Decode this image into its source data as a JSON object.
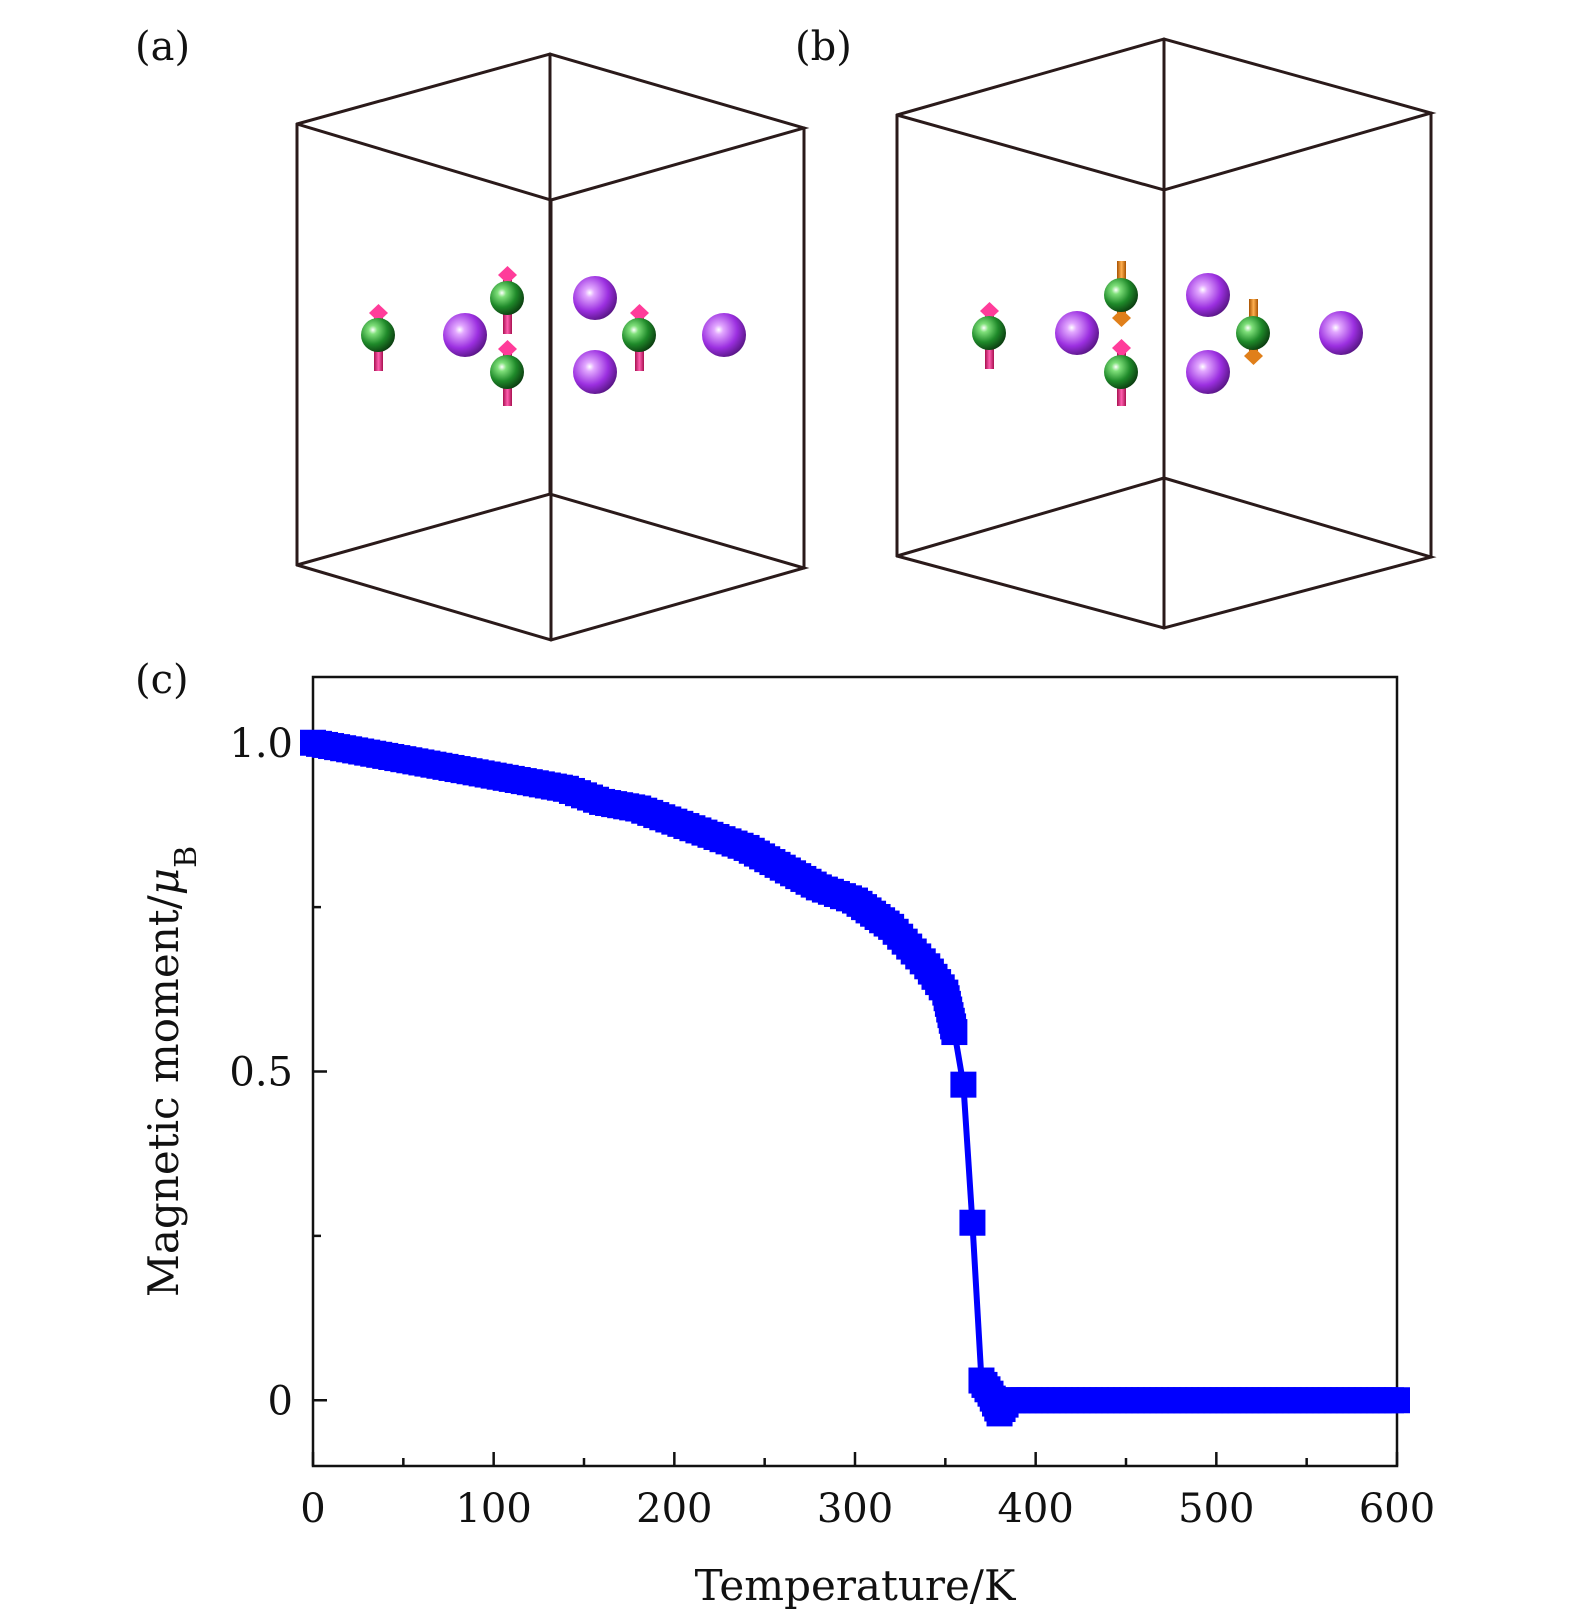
{
  "panels": {
    "a": "(a)",
    "b": "(b)",
    "c": "(c)"
  },
  "colors": {
    "data": "#0000ff",
    "atom_green": "#1f8a2a",
    "atom_purple": "#9b2fe0",
    "spin_up": "#e0207a",
    "spin_down": "#e07f1a",
    "cell_edge": "#2a1a1a"
  },
  "crystal_panels": [
    {
      "label": "(a)",
      "spins": [
        "up",
        "up",
        "up",
        "up"
      ]
    },
    {
      "label": "(b)",
      "spins": [
        "up",
        "down",
        "up",
        "down"
      ]
    }
  ],
  "chart_data": {
    "type": "scatter",
    "xlabel": "Temperature/K",
    "ylabel_main": "Magnetic moment/",
    "ylabel_symbol": "μ",
    "ylabel_sub": "B",
    "xlim": [
      0,
      600
    ],
    "ylim": [
      -0.1,
      1.1
    ],
    "xticks": [
      0,
      100,
      200,
      300,
      400,
      500,
      600
    ],
    "xtick_labels": [
      "0",
      "100",
      "200",
      "300",
      "400",
      "500",
      "600"
    ],
    "yticks": [
      0,
      0.5,
      1.0
    ],
    "ytick_labels": [
      "0",
      "0.5",
      "1.0"
    ],
    "marker": "square",
    "connected": true,
    "series": [
      {
        "x": [
          0,
          20,
          40,
          60,
          80,
          100,
          120,
          140,
          160,
          180,
          200,
          220,
          240,
          260,
          280,
          300,
          310,
          320,
          330,
          340,
          350,
          355,
          360,
          365,
          370,
          375,
          380,
          385,
          390,
          400,
          420,
          440,
          460,
          480,
          500,
          520,
          540,
          560,
          580,
          600
        ],
        "y": [
          1.0,
          0.99,
          0.98,
          0.97,
          0.96,
          0.95,
          0.94,
          0.93,
          0.91,
          0.9,
          0.88,
          0.86,
          0.84,
          0.81,
          0.78,
          0.76,
          0.74,
          0.72,
          0.69,
          0.66,
          0.62,
          0.56,
          0.48,
          0.27,
          0.03,
          0.01,
          -0.02,
          0.0,
          0.0,
          0.0,
          0.0,
          0.0,
          0.0,
          0.0,
          0.0,
          0.0,
          0.0,
          0.0,
          0.0,
          0.0
        ]
      }
    ]
  }
}
